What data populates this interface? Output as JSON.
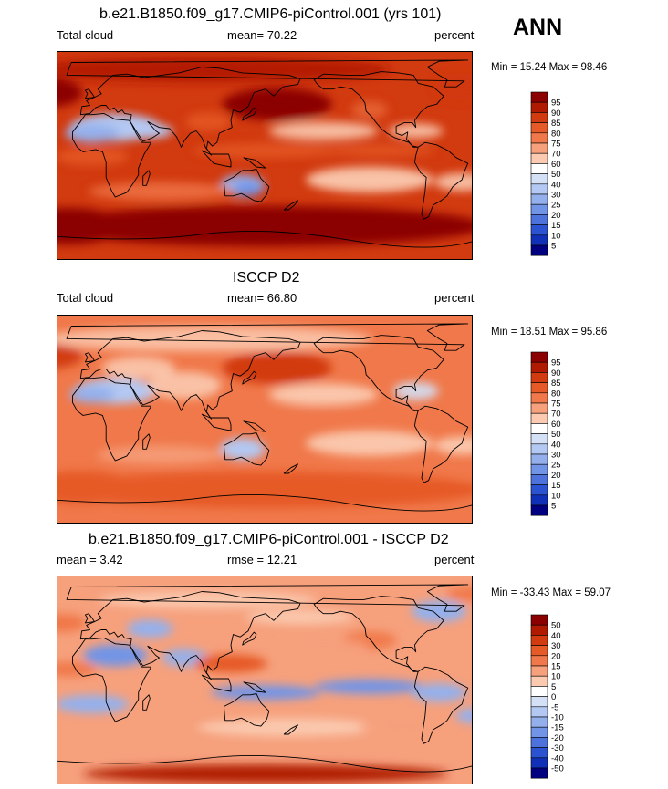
{
  "season": "ANN",
  "panels": [
    {
      "title": "b.e21.B1850.f09_g17.CMIP6-piControl.001 (yrs 101)",
      "left_label": "Total cloud",
      "center_label": "mean=  70.22",
      "units": "percent",
      "minmax": "Min =  15.24 Max =  98.46"
    },
    {
      "title": "ISCCP D2",
      "left_label": "Total cloud",
      "center_label": "mean=  66.80",
      "units": "percent",
      "minmax": "Min =  18.51 Max =  95.86"
    },
    {
      "title": "b.e21.B1850.f09_g17.CMIP6-piControl.001 - ISCCP D2",
      "left_label": "mean =   3.42",
      "center_label": "rmse =  12.21",
      "units": "percent",
      "minmax": "Min = -33.43 Max =  59.07"
    }
  ],
  "chart_data": [
    {
      "type": "heatmap",
      "title": "b.e21.B1850.f09_g17.CMIP6-piControl.001 (yrs 101)",
      "variable": "Total cloud",
      "units": "percent",
      "mean": 70.22,
      "min": 15.24,
      "max": 98.46,
      "colorbar_levels": [
        "95",
        "90",
        "85",
        "80",
        "75",
        "70",
        "60",
        "50",
        "40",
        "30",
        "25",
        "20",
        "15",
        "10",
        "5"
      ],
      "colorbar_colors": [
        "#8b0000",
        "#b01a00",
        "#d23a0f",
        "#e65a28",
        "#f0784a",
        "#f6a07c",
        "#fbcab0",
        "#ffffff",
        "#d3e0f6",
        "#b3c8f2",
        "#94b0ec",
        "#7294e6",
        "#4d72dc",
        "#2b52d0",
        "#1030b8",
        "#000080"
      ]
    },
    {
      "type": "heatmap",
      "title": "ISCCP D2",
      "variable": "Total cloud",
      "units": "percent",
      "mean": 66.8,
      "min": 18.51,
      "max": 95.86,
      "colorbar_levels": [
        "95",
        "90",
        "85",
        "80",
        "75",
        "70",
        "60",
        "50",
        "40",
        "30",
        "25",
        "20",
        "15",
        "10",
        "5"
      ],
      "colorbar_colors": [
        "#8b0000",
        "#b01a00",
        "#d23a0f",
        "#e65a28",
        "#f0784a",
        "#f6a07c",
        "#fbcab0",
        "#ffffff",
        "#d3e0f6",
        "#b3c8f2",
        "#94b0ec",
        "#7294e6",
        "#4d72dc",
        "#2b52d0",
        "#1030b8",
        "#000080"
      ]
    },
    {
      "type": "heatmap",
      "title": "b.e21.B1850.f09_g17.CMIP6-piControl.001 - ISCCP D2",
      "units": "percent",
      "mean": 3.42,
      "rmse": 12.21,
      "min": -33.43,
      "max": 59.07,
      "colorbar_levels": [
        "50",
        "40",
        "30",
        "20",
        "15",
        "10",
        "5",
        "0",
        "-5",
        "-10",
        "-15",
        "-20",
        "-30",
        "-40",
        "-50"
      ],
      "colorbar_colors": [
        "#8b0000",
        "#b01a00",
        "#d23a0f",
        "#e65a28",
        "#f0784a",
        "#f6a07c",
        "#fbcab0",
        "#ffffff",
        "#d3e0f6",
        "#b3c8f2",
        "#94b0ec",
        "#7294e6",
        "#4d72dc",
        "#2b52d0",
        "#1030b8",
        "#000080"
      ]
    }
  ]
}
